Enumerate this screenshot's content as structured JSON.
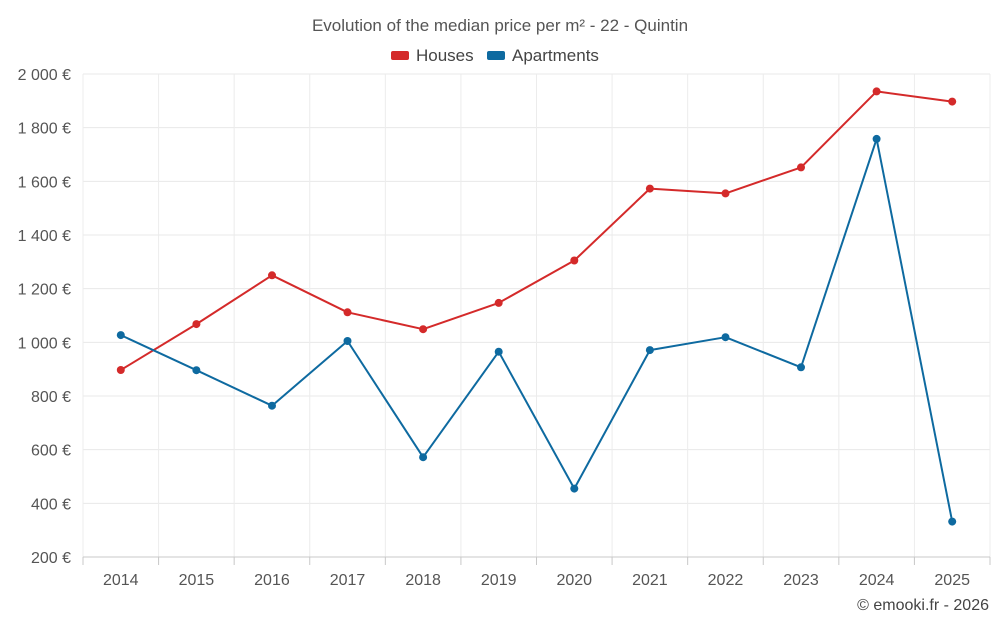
{
  "chart_data": {
    "type": "line",
    "title": "Evolution of the median price per m² - 22 - Quintin",
    "xlabel": "",
    "ylabel": "",
    "categories": [
      "2014",
      "2015",
      "2016",
      "2017",
      "2018",
      "2019",
      "2020",
      "2021",
      "2022",
      "2023",
      "2024",
      "2025"
    ],
    "ylim": [
      200,
      2000
    ],
    "yticks": [
      200,
      400,
      600,
      800,
      1000,
      1200,
      1400,
      1600,
      1800,
      2000
    ],
    "ytick_labels": [
      "200 €",
      "400 €",
      "600 €",
      "800 €",
      "1 000 €",
      "1 200 €",
      "1 400 €",
      "1 600 €",
      "1 800 €",
      "2 000 €"
    ],
    "grid": true,
    "legend_position": "top-center",
    "series": [
      {
        "name": "Houses",
        "color": "#d42a2a",
        "values": [
          897,
          1068,
          1250,
          1112,
          1049,
          1147,
          1305,
          1573,
          1555,
          1652,
          1935,
          1897
        ]
      },
      {
        "name": "Apartments",
        "color": "#0e6aa0",
        "values": [
          1027,
          896,
          764,
          1005,
          572,
          965,
          455,
          971,
          1019,
          907,
          1758,
          332
        ]
      }
    ]
  },
  "credit": "© emooki.fr - 2026"
}
